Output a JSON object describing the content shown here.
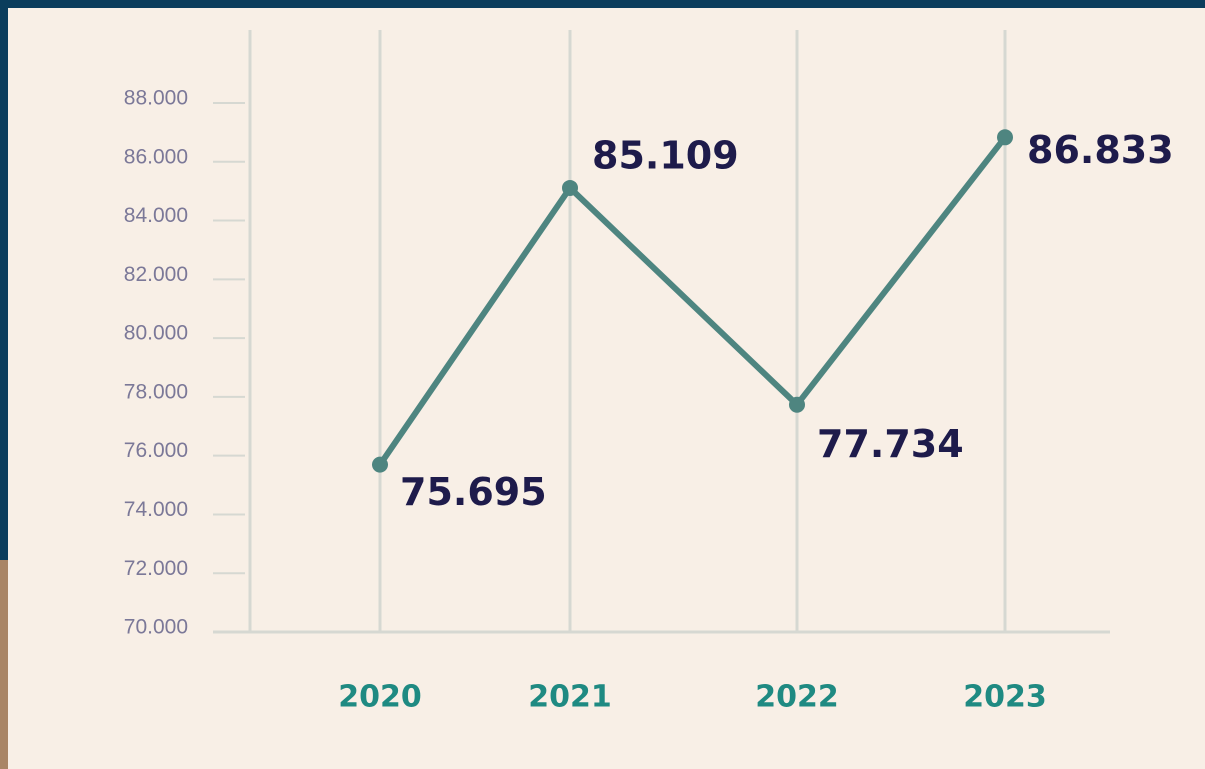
{
  "chart_data": {
    "type": "line",
    "categories": [
      "2020",
      "2021",
      "2022",
      "2023"
    ],
    "series": [
      {
        "color": "#4e8580",
        "values": [
          75695,
          85109,
          77734,
          86833
        ],
        "value_labels": [
          "75.695",
          "85.109",
          "77.734",
          "86.833"
        ]
      }
    ],
    "ylim": [
      70000,
      88000
    ],
    "yticks": [
      {
        "value": 70000,
        "label": "70.000"
      },
      {
        "value": 72000,
        "label": "72.000"
      },
      {
        "value": 74000,
        "label": "74.000"
      },
      {
        "value": 76000,
        "label": "76.000"
      },
      {
        "value": 78000,
        "label": "78.000"
      },
      {
        "value": 80000,
        "label": "80.000"
      },
      {
        "value": 82000,
        "label": "82.000"
      },
      {
        "value": 84000,
        "label": "84.000"
      },
      {
        "value": 86000,
        "label": "86.000"
      },
      {
        "value": 88000,
        "label": "88.000"
      }
    ],
    "grid": true
  }
}
